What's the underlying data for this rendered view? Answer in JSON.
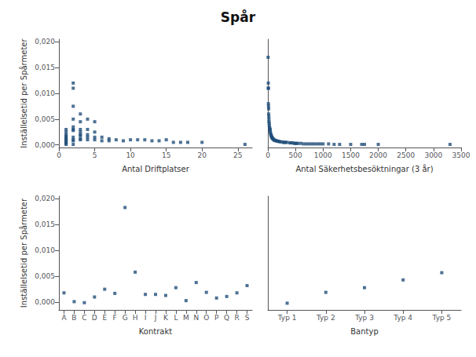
{
  "title": "Spår",
  "chart_data": [
    {
      "type": "scatter",
      "xlabel": "Antal Driftplatser",
      "ylabel": "Inställelsetid per Spårmeter",
      "marker": "square",
      "color": "#1f4e79",
      "grid": false,
      "xlim": [
        0,
        27
      ],
      "xticks": [
        0,
        5,
        10,
        15,
        20,
        25
      ],
      "ylim": [
        -0.0005,
        0.0205
      ],
      "yticks": [
        {
          "value": 0.0,
          "label": "0,000"
        },
        {
          "value": 0.005,
          "label": "0,005"
        },
        {
          "value": 0.01,
          "label": "0,010"
        },
        {
          "value": 0.015,
          "label": "0,015"
        },
        {
          "value": 0.02,
          "label": "0,020"
        }
      ],
      "x": [
        1,
        1,
        1,
        1,
        1,
        1,
        1,
        1,
        1,
        1,
        1,
        2,
        2,
        2,
        2,
        2,
        2,
        2,
        2,
        2,
        2,
        2,
        3,
        3,
        3,
        3,
        3,
        3,
        3,
        3,
        4,
        4,
        4,
        4,
        4,
        5,
        5,
        5,
        5,
        6,
        6,
        7,
        7,
        8,
        9,
        10,
        11,
        12,
        13,
        14,
        15,
        16,
        17,
        18,
        20,
        26
      ],
      "values": [
        0.0017,
        0.0005,
        0.0003,
        0.0012,
        0.0008,
        0.0015,
        0.002,
        0.001,
        0.0025,
        0.003,
        0.0001,
        0.012,
        0.011,
        0.005,
        0.0075,
        0.003,
        0.0028,
        0.0035,
        0.0015,
        0.001,
        0.0008,
        0.0001,
        0.006,
        0.0045,
        0.003,
        0.0025,
        0.002,
        0.0018,
        0.0012,
        0.001,
        0.005,
        0.003,
        0.002,
        0.0015,
        0.001,
        0.0045,
        0.0025,
        0.0015,
        0.001,
        0.0015,
        0.0008,
        0.0012,
        0.0008,
        0.001,
        0.0008,
        0.001,
        0.001,
        0.001,
        0.0008,
        0.0008,
        0.001,
        0.0005,
        0.0005,
        0.0005,
        0.0005,
        0.0001
      ]
    },
    {
      "type": "scatter",
      "xlabel": "Antal Säkerhetsbesöktningar (3 år)",
      "marker": "square",
      "color": "#1f4e79",
      "grid": false,
      "tick_labels": "x",
      "xlim": [
        0,
        3500
      ],
      "xticks": [
        0,
        500,
        1000,
        1500,
        2000,
        2500,
        3000,
        3500
      ],
      "ylim": [
        -0.0005,
        0.0205
      ],
      "yticks": [
        0.0,
        0.005,
        0.01,
        0.015,
        0.02
      ],
      "x": [
        5,
        8,
        8,
        10,
        10,
        12,
        15,
        15,
        18,
        20,
        20,
        25,
        25,
        30,
        35,
        40,
        40,
        45,
        50,
        55,
        60,
        65,
        70,
        80,
        80,
        90,
        100,
        110,
        120,
        130,
        150,
        160,
        180,
        200,
        220,
        250,
        280,
        300,
        320,
        350,
        400,
        420,
        450,
        480,
        500,
        520,
        550,
        600,
        650,
        700,
        750,
        800,
        850,
        900,
        950,
        1000,
        1100,
        1200,
        1300,
        1500,
        1700,
        1750,
        2000,
        3300
      ],
      "values": [
        0.017,
        0.012,
        0.011,
        0.011,
        0.008,
        0.0075,
        0.007,
        0.006,
        0.0055,
        0.005,
        0.0045,
        0.0042,
        0.0038,
        0.0035,
        0.0032,
        0.003,
        0.0028,
        0.0025,
        0.0022,
        0.002,
        0.0018,
        0.0017,
        0.0015,
        0.0014,
        0.0013,
        0.0012,
        0.0011,
        0.001,
        0.0009,
        0.0009,
        0.0008,
        0.0008,
        0.0007,
        0.0007,
        0.0006,
        0.0006,
        0.0005,
        0.0005,
        0.0005,
        0.0005,
        0.0004,
        0.0004,
        0.0004,
        0.0003,
        0.0003,
        0.0003,
        0.0003,
        0.0003,
        0.0002,
        0.0002,
        0.0002,
        0.0002,
        0.0002,
        0.0002,
        0.0002,
        0.0002,
        0.0002,
        0.0001,
        0.0001,
        0.0001,
        0.0001,
        0.0001,
        0.0001,
        0.0001
      ]
    },
    {
      "type": "scatter",
      "xlabel": "Kontrakt",
      "ylabel": "Inställelsetid per Spårmeter",
      "marker": "square",
      "color": "#1f4e79",
      "grid": false,
      "categories": [
        "A",
        "B",
        "C",
        "D",
        "E",
        "F",
        "G",
        "H",
        "I",
        "J",
        "K",
        "L",
        "M",
        "N",
        "O",
        "P",
        "Q",
        "R",
        "S"
      ],
      "ylim": [
        -0.0015,
        0.0205
      ],
      "yticks": [
        {
          "value": 0.0,
          "label": "0,000"
        },
        {
          "value": 0.005,
          "label": "0,005"
        },
        {
          "value": 0.01,
          "label": "0,010"
        },
        {
          "value": 0.015,
          "label": "0,015"
        },
        {
          "value": 0.02,
          "label": "0,020"
        }
      ],
      "values": [
        0.0018,
        0.0001,
        -0.0001,
        0.001,
        0.0025,
        0.0017,
        0.0183,
        0.0058,
        0.0015,
        0.0015,
        0.0013,
        0.0028,
        0.0003,
        0.0038,
        0.0019,
        0.0008,
        0.0011,
        0.0018,
        0.0032
      ]
    },
    {
      "type": "scatter",
      "xlabel": "Bantyp",
      "marker": "square",
      "color": "#1f4e79",
      "grid": false,
      "tick_labels": "x",
      "categories": [
        "Typ 1",
        "Typ 2",
        "Typ 3",
        "Typ 4",
        "Typ 5"
      ],
      "ylim": [
        -0.0015,
        0.0205
      ],
      "yticks": [
        0.0,
        0.005,
        0.01,
        0.015,
        0.02
      ],
      "values": [
        -0.0002,
        0.0019,
        0.0028,
        0.0043,
        0.0057
      ]
    }
  ]
}
